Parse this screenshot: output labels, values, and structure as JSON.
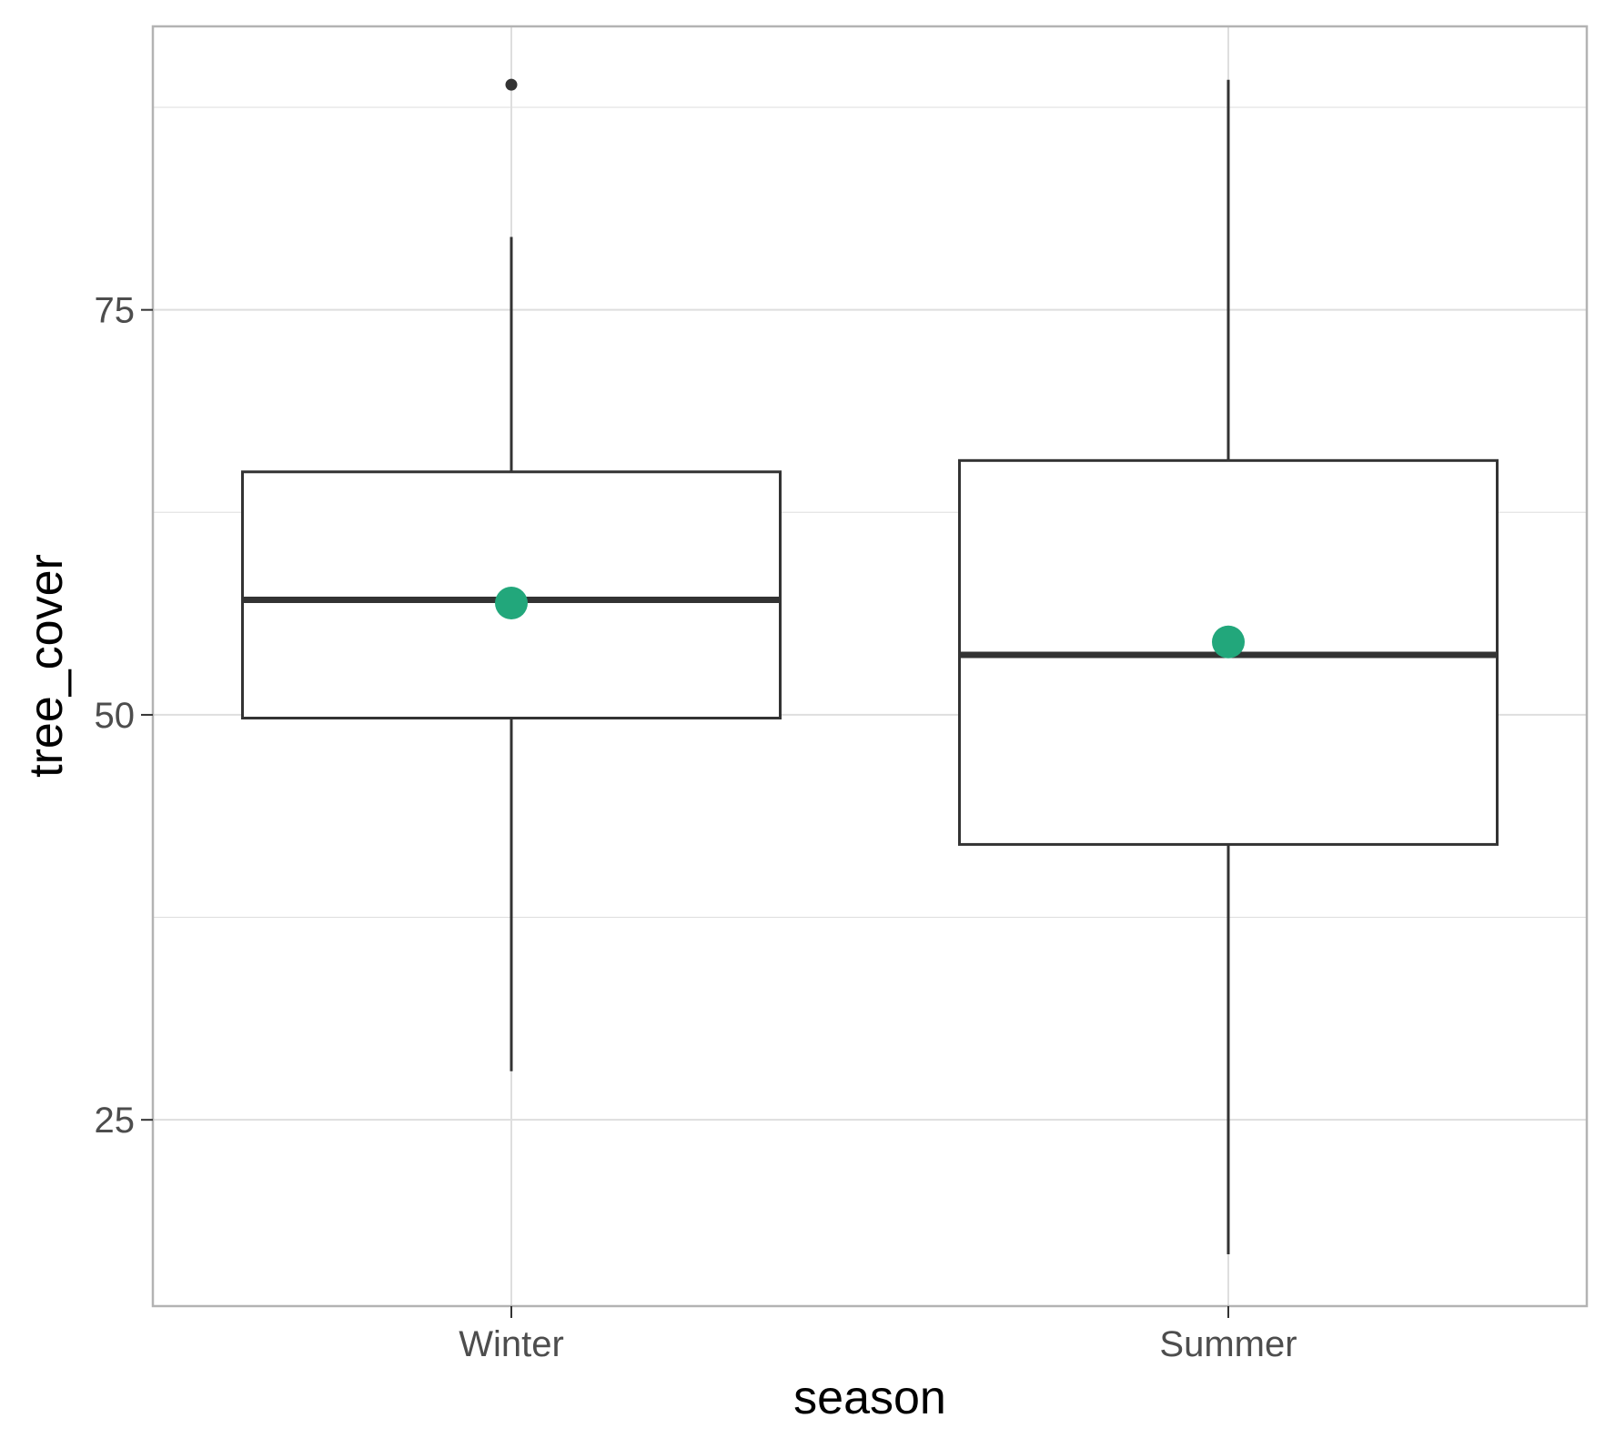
{
  "chart_data": {
    "type": "boxplot",
    "title": "",
    "xlabel": "season",
    "ylabel": "tree_cover",
    "categories": [
      "Winter",
      "Summer"
    ],
    "boxes": [
      {
        "category": "Winter",
        "lower_whisker": 28.0,
        "q1": 49.8,
        "median": 57.1,
        "q3": 65.0,
        "upper_whisker": 79.5,
        "mean": 56.9,
        "outliers": [
          88.9
        ]
      },
      {
        "category": "Summer",
        "lower_whisker": 16.7,
        "q1": 42.0,
        "median": 53.7,
        "q3": 65.7,
        "upper_whisker": 89.2,
        "mean": 54.5,
        "outliers": []
      }
    ],
    "ylim": [
      13.5,
      92.5
    ],
    "yticks": [
      25,
      50,
      75
    ],
    "ytick_labels": [
      "25",
      "50",
      "75"
    ],
    "grid": true,
    "legend": "none",
    "colors": {
      "box_stroke": "#333333",
      "mean_point": "#22a77b",
      "grid": "#dedede",
      "panel_border": "#b3b3b3",
      "tick_text": "#4d4d4d"
    }
  }
}
